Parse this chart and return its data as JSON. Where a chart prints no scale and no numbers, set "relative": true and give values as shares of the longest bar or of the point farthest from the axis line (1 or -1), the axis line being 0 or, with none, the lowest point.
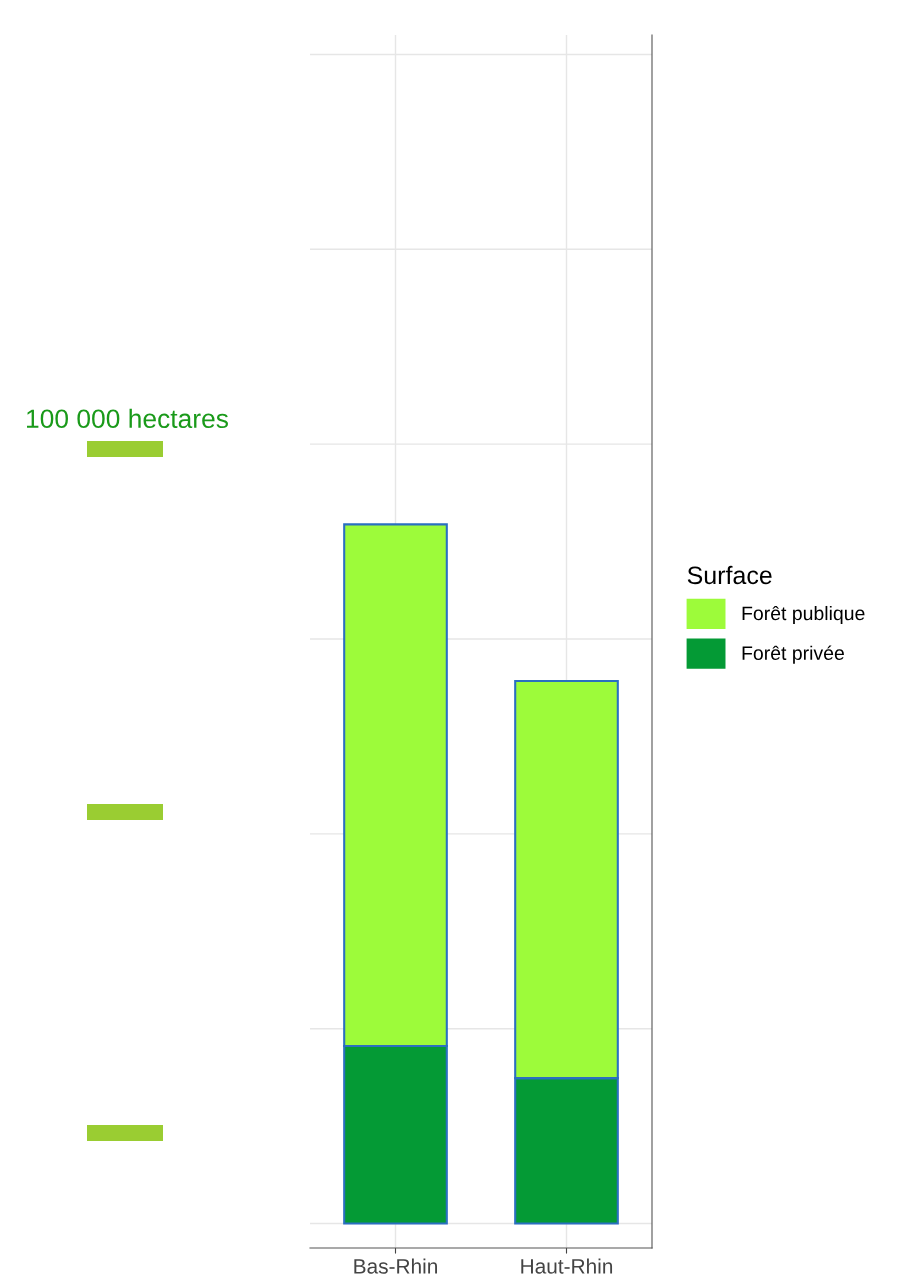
{
  "chart_data": {
    "type": "bar",
    "relative": true,
    "stacked": true,
    "categories": [
      "Bas-Rhin",
      "Haut-Rhin"
    ],
    "series": [
      {
        "name": "Forêt privée",
        "color": "#049a35",
        "values": [
          0.254,
          0.208
        ]
      },
      {
        "name": "Forêt publique",
        "color": "#9dfb3a",
        "values": [
          0.746,
          0.568
        ]
      }
    ],
    "legend_title": "Surface",
    "legend": "right",
    "grid": true,
    "tick_labels": "x",
    "annotations": [
      "100 000 hectares"
    ]
  }
}
